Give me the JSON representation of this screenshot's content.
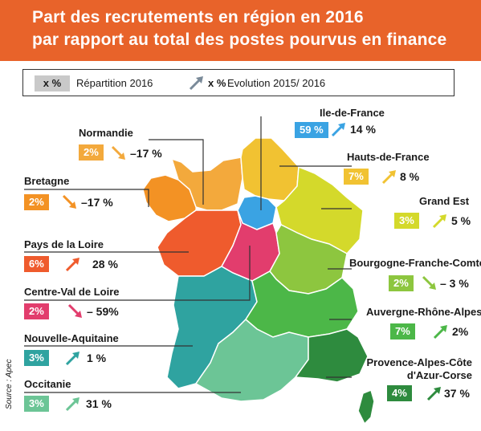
{
  "title": {
    "line1": "Part des recrutements en région en 2016",
    "line2": "par rapport au total des postes pourvus en finance"
  },
  "legend": {
    "box_label": "x %",
    "repartition": "Répartition 2016",
    "evolution_symbol": "x %",
    "evolution": "Evolution 2015/ 2016"
  },
  "source": "Source : Apec",
  "regions": [
    {
      "key": "ile-de-france",
      "name": "Ile-de-France",
      "share": "59 %",
      "evolution": "14 %",
      "trend": "up",
      "color": "#3aa3e3"
    },
    {
      "key": "hauts-de-france",
      "name": "Hauts-de-France",
      "share": "7%",
      "evolution": "8 %",
      "trend": "up",
      "color": "#f1c232"
    },
    {
      "key": "grand-est",
      "name": "Grand Est",
      "share": "3%",
      "evolution": "5 %",
      "trend": "up",
      "color": "#d4d92b"
    },
    {
      "key": "bourgogne-franche-comte",
      "name": "Bourgogne-Franche-Comté",
      "share": "2%",
      "evolution": "– 3 %",
      "trend": "down",
      "color": "#8dc63f"
    },
    {
      "key": "auvergne-rhone-alpes",
      "name": "Auvergne-Rhône-Alpes",
      "share": "7%",
      "evolution": "2%",
      "trend": "up",
      "color": "#4cb748"
    },
    {
      "key": "paca",
      "name": "Provence-Alpes-Côte\nd'Azur-Corse",
      "share": "4%",
      "evolution": "37 %",
      "trend": "up",
      "color": "#2e8b3e"
    },
    {
      "key": "normandie",
      "name": "Normandie",
      "share": "2%",
      "evolution": "–17 %",
      "trend": "down",
      "color": "#f3a93c"
    },
    {
      "key": "bretagne",
      "name": "Bretagne",
      "share": "2%",
      "evolution": "–17 %",
      "trend": "down",
      "color": "#f39224"
    },
    {
      "key": "pays-de-la-loire",
      "name": "Pays de la Loire",
      "share": "6%",
      "evolution": "28 %",
      "trend": "up",
      "color": "#ef5b2d"
    },
    {
      "key": "centre-val-de-loire",
      "name": "Centre-Val de Loire",
      "share": "2%",
      "evolution": "– 59%",
      "trend": "down",
      "color": "#e23d6d"
    },
    {
      "key": "nouvelle-aquitaine",
      "name": "Nouvelle-Aquitaine",
      "share": "3%",
      "evolution": "1 %",
      "trend": "up",
      "color": "#2fa3a0"
    },
    {
      "key": "occitanie",
      "name": "Occitanie",
      "share": "3%",
      "evolution": "31 %",
      "trend": "up",
      "color": "#6cc596"
    }
  ]
}
